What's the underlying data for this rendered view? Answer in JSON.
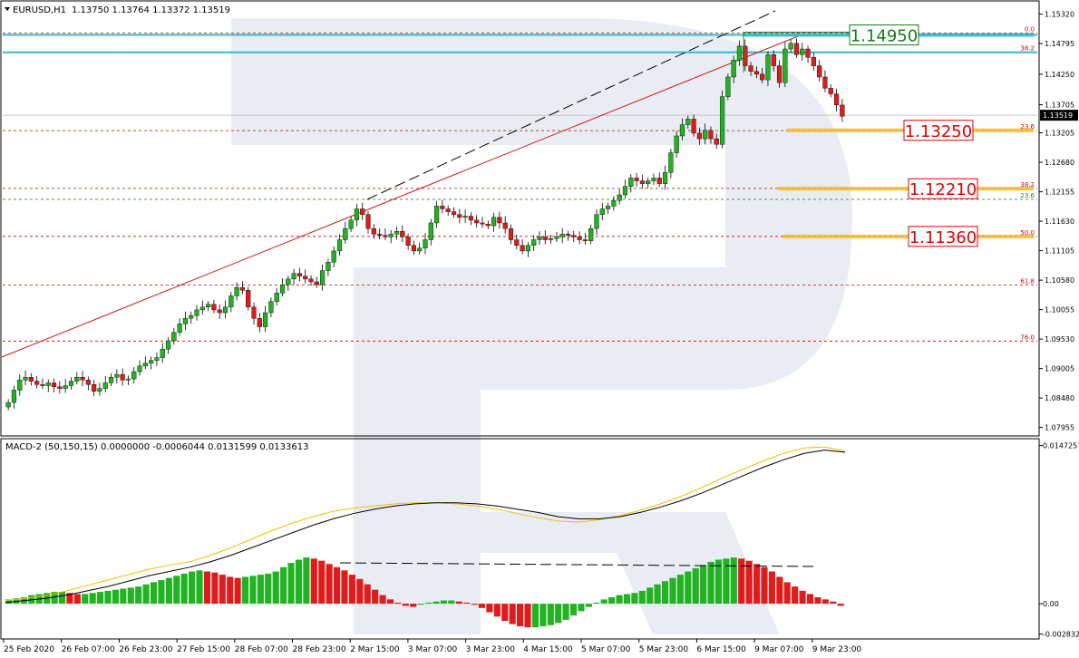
{
  "chart_data": {
    "type": "candlestick",
    "symbol_header": "EURUSD,H1",
    "ohlc_header": "1.13750 1.13764 1.13372 1.13519",
    "price_axis": {
      "ylim": [
        1.0782,
        1.1554
      ],
      "ticks": [
        "1.15320",
        "1.14795",
        "1.14250",
        "1.13705",
        "1.13205",
        "1.12680",
        "1.12155",
        "1.11630",
        "1.11105",
        "1.10580",
        "1.10055",
        "1.09530",
        "1.09005",
        "1.08480",
        "1.07955"
      ],
      "tick_values": [
        1.1532,
        1.14795,
        1.1425,
        1.13705,
        1.13205,
        1.1268,
        1.12155,
        1.1163,
        1.11105,
        1.1058,
        1.10055,
        1.0953,
        1.09005,
        1.0848,
        1.07955
      ],
      "current_price_label": "1.13519",
      "current_price": 1.13519
    },
    "time_axis": {
      "labels": [
        "25 Feb 2020",
        "26 Feb 07:00",
        "26 Feb 23:00",
        "27 Feb 15:00",
        "28 Feb 07:00",
        "28 Feb 23:00",
        "2 Mar 15:00",
        "3 Mar 07:00",
        "3 Mar 23:00",
        "4 Mar 15:00",
        "5 Mar 07:00",
        "5 Mar 23:00",
        "6 Mar 15:00",
        "9 Mar 07:00",
        "9 Mar 23:00"
      ]
    },
    "fib_levels": [
      {
        "label": "0.0",
        "price": 1.14985,
        "color": "#cc0000"
      },
      {
        "label": "38.2",
        "price": 1.1464,
        "color": "#cc0000"
      },
      {
        "label": "23.6",
        "price": 1.13245,
        "color": "#cc0000"
      },
      {
        "label": "38.2",
        "price": 1.12215,
        "color": "#cc0000"
      },
      {
        "label": "23.6",
        "price": 1.1202,
        "color": "#2e8b2e"
      },
      {
        "label": "50.0",
        "price": 1.1136,
        "color": "#cc0000"
      },
      {
        "label": "61.8",
        "price": 1.10495,
        "color": "#cc0000"
      },
      {
        "label": "76.0",
        "price": 1.09495,
        "color": "#cc0000"
      }
    ],
    "price_callouts": [
      {
        "text": "1.14950",
        "price": 1.1495,
        "color": "#1a7a1a"
      },
      {
        "text": "1.13250",
        "price": 1.1325,
        "color": "#dd0000"
      },
      {
        "text": "1.12210",
        "price": 1.1221,
        "color": "#dd0000"
      },
      {
        "text": "1.11360",
        "price": 1.1136,
        "color": "#dd0000"
      }
    ],
    "candles_close": [
      1.084,
      1.0862,
      1.088,
      1.0885,
      1.0878,
      1.0872,
      1.087,
      1.0875,
      1.0868,
      1.0865,
      1.087,
      1.0878,
      1.0885,
      1.088,
      1.0872,
      1.086,
      1.0865,
      1.0875,
      1.0885,
      1.089,
      1.088,
      1.0882,
      1.0895,
      1.0905,
      1.091,
      1.0915,
      1.092,
      1.0935,
      1.095,
      1.0965,
      1.098,
      1.099,
      1.0995,
      1.1005,
      1.101,
      1.1015,
      1.1005,
      1.1,
      1.101,
      1.103,
      1.1045,
      1.104,
      1.101,
      1.099,
      1.0975,
      1.1,
      1.102,
      1.1035,
      1.105,
      1.106,
      1.107,
      1.1065,
      1.106,
      1.1055,
      1.105,
      1.1075,
      1.109,
      1.111,
      1.113,
      1.115,
      1.1165,
      1.1185,
      1.1175,
      1.115,
      1.114,
      1.1138,
      1.1135,
      1.114,
      1.1145,
      1.1135,
      1.112,
      1.111,
      1.1115,
      1.113,
      1.116,
      1.119,
      1.1185,
      1.118,
      1.1175,
      1.117,
      1.1172,
      1.1165,
      1.116,
      1.1158,
      1.1155,
      1.117,
      1.116,
      1.115,
      1.113,
      1.112,
      1.111,
      1.112,
      1.113,
      1.1135,
      1.113,
      1.1132,
      1.1135,
      1.114,
      1.1138,
      1.1135,
      1.113,
      1.1128,
      1.115,
      1.1175,
      1.1185,
      1.119,
      1.12,
      1.121,
      1.1225,
      1.124,
      1.1235,
      1.123,
      1.1235,
      1.124,
      1.123,
      1.125,
      1.1285,
      1.1315,
      1.1335,
      1.1345,
      1.132,
      1.131,
      1.1325,
      1.131,
      1.13,
      1.1385,
      1.142,
      1.145,
      1.1475,
      1.144,
      1.143,
      1.1425,
      1.1415,
      1.146,
      1.144,
      1.141,
      1.147,
      1.148,
      1.146,
      1.147,
      1.1455,
      1.144,
      1.142,
      1.14,
      1.139,
      1.137,
      1.135
    ],
    "macd": {
      "label": "MACD-2 (50,150,15) 0.0000000 -0.0006044 0.0131599 0.0133613",
      "ylim": [
        -0.0032,
        0.0152
      ],
      "ticks": [
        "0.0147257",
        "0.00",
        "-0.0028320"
      ],
      "tick_values": [
        0.0147257,
        0,
        -0.002832
      ],
      "histogram": [
        0.0004,
        0.0005,
        0.0006,
        0.0008,
        0.0009,
        0.001,
        0.0011,
        0.0011,
        0.001,
        0.0009,
        0.0009,
        0.001,
        0.0011,
        0.0012,
        0.0013,
        0.0014,
        0.0015,
        0.0016,
        0.0018,
        0.002,
        0.0022,
        0.0024,
        0.0026,
        0.0028,
        0.003,
        0.0031,
        0.003,
        0.0029,
        0.0027,
        0.0025,
        0.0024,
        0.0025,
        0.0026,
        0.0027,
        0.0028,
        0.003,
        0.0034,
        0.0038,
        0.0041,
        0.0043,
        0.0042,
        0.004,
        0.0037,
        0.0034,
        0.0031,
        0.0027,
        0.0023,
        0.0018,
        0.0013,
        0.0008,
        0.0004,
        0.0001,
        -0.0002,
        -0.0003,
        -0.0001,
        0.0001,
        0.0002,
        0.0003,
        0.0003,
        0.0002,
        0.0001,
        -0.0001,
        -0.0004,
        -0.0008,
        -0.0012,
        -0.0016,
        -0.0019,
        -0.0021,
        -0.0022,
        -0.0022,
        -0.0021,
        -0.002,
        -0.0018,
        -0.0015,
        -0.0011,
        -0.0007,
        -0.0003,
        0.0001,
        0.0004,
        0.0006,
        0.0008,
        0.0009,
        0.001,
        0.0012,
        0.0015,
        0.0018,
        0.0021,
        0.0024,
        0.0027,
        0.003,
        0.0033,
        0.0036,
        0.0039,
        0.0041,
        0.0042,
        0.0043,
        0.0042,
        0.004,
        0.0037,
        0.0034,
        0.003,
        0.0025,
        0.002,
        0.0016,
        0.0012,
        0.0009,
        0.0006,
        0.0004,
        0.0002,
        -0.0002
      ],
      "signal": [
        0.0003,
        0.0005,
        0.0008,
        0.0012,
        0.0017,
        0.0022,
        0.0027,
        0.0032,
        0.0036,
        0.0039,
        0.0045,
        0.0052,
        0.006,
        0.0068,
        0.0075,
        0.0081,
        0.0086,
        0.0089,
        0.0091,
        0.0093,
        0.0094,
        0.0094,
        0.0093,
        0.0091,
        0.0088,
        0.0084,
        0.008,
        0.0077,
        0.0076,
        0.0078,
        0.0082,
        0.0087,
        0.0093,
        0.01,
        0.0108,
        0.0117,
        0.0125,
        0.0133,
        0.014,
        0.0145,
        0.0146,
        0.0142
      ],
      "main": [
        0.0001,
        0.0003,
        0.0005,
        0.0008,
        0.0012,
        0.0016,
        0.0021,
        0.0026,
        0.003,
        0.0034,
        0.0039,
        0.0045,
        0.0052,
        0.0059,
        0.0066,
        0.0073,
        0.0079,
        0.0084,
        0.0088,
        0.0091,
        0.0093,
        0.0094,
        0.0094,
        0.0093,
        0.0091,
        0.0088,
        0.0085,
        0.0081,
        0.0079,
        0.0079,
        0.0081,
        0.0085,
        0.009,
        0.0096,
        0.0103,
        0.0111,
        0.0119,
        0.0127,
        0.0134,
        0.014,
        0.0143,
        0.0141
      ]
    }
  }
}
